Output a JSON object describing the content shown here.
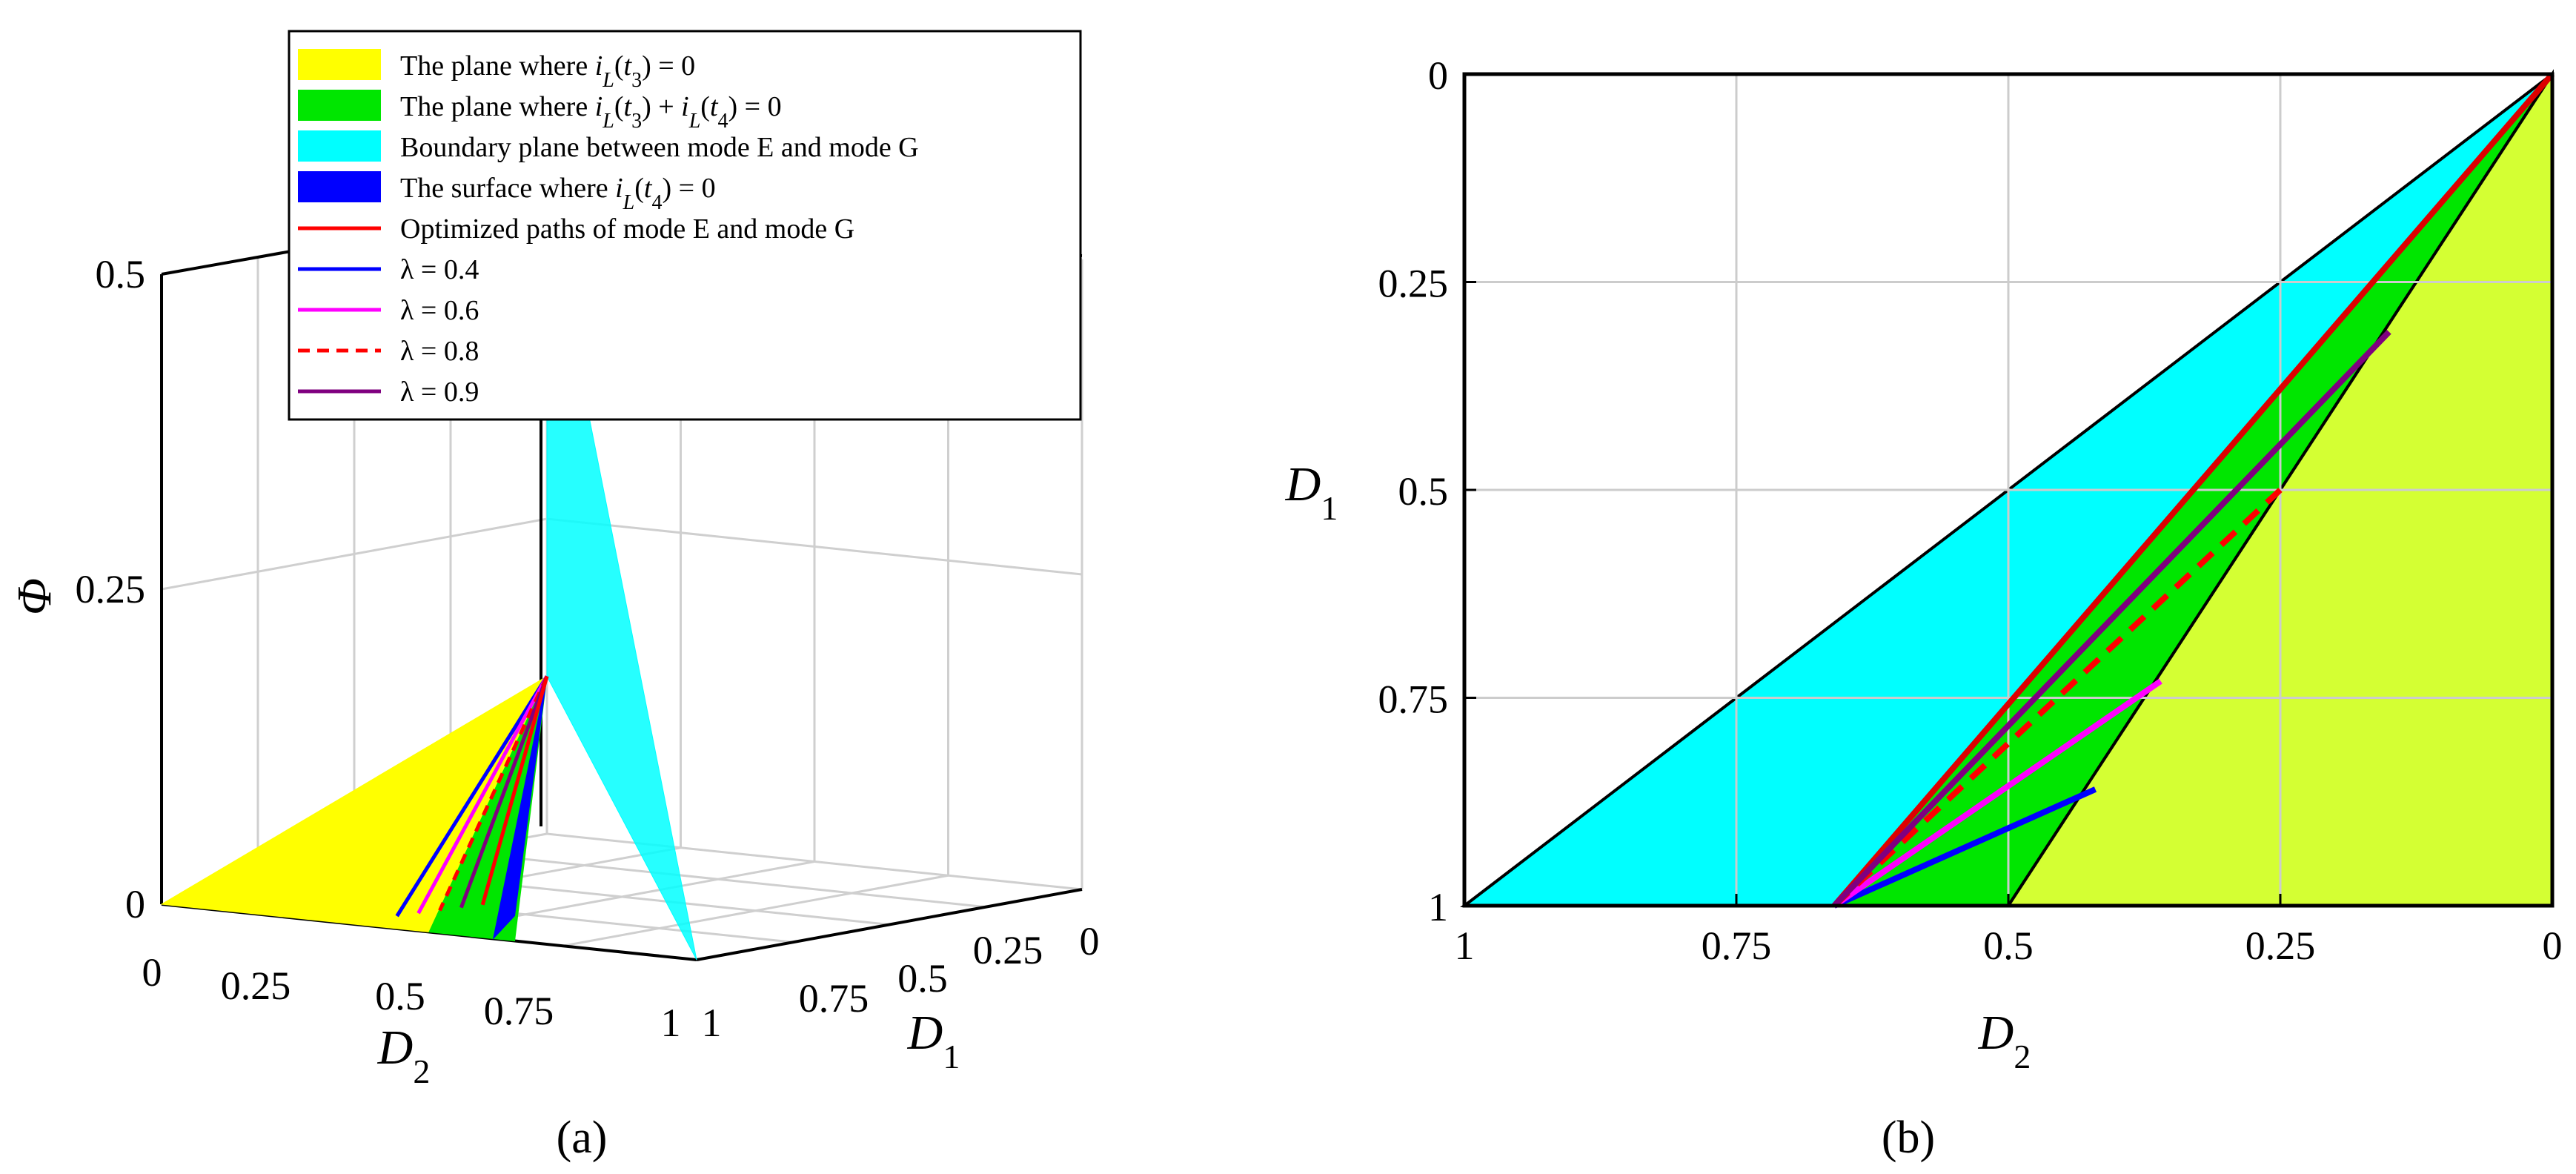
{
  "figure": {
    "panel_labels": [
      "(a)",
      "(b)"
    ]
  },
  "legend": [
    {
      "kind": "patch",
      "color": "#ffff00",
      "pre": "The plane where ",
      "expr": "i_L(t_3) = 0"
    },
    {
      "kind": "patch",
      "color": "#00e600",
      "pre": "The plane where ",
      "expr": "i_L(t_3) + i_L(t_4) = 0"
    },
    {
      "kind": "patch",
      "color": "#00ffff",
      "pre": "Boundary plane between mode E and mode G",
      "expr": ""
    },
    {
      "kind": "patch",
      "color": "#0000ff",
      "pre": "The surface where ",
      "expr": "i_L(t_4) = 0"
    },
    {
      "kind": "line",
      "color": "#ff0000",
      "dash": "solid",
      "pre": "Optimized paths of mode E and mode G",
      "expr": ""
    },
    {
      "kind": "line",
      "color": "#0000ff",
      "dash": "solid",
      "pre": "λ = 0.4",
      "expr": ""
    },
    {
      "kind": "line",
      "color": "#ff00ff",
      "dash": "solid",
      "pre": "λ = 0.6",
      "expr": ""
    },
    {
      "kind": "line",
      "color": "#ff0000",
      "dash": "dashed",
      "pre": "λ = 0.8",
      "expr": ""
    },
    {
      "kind": "line",
      "color": "#7f007f",
      "dash": "solid",
      "pre": "λ = 0.9",
      "expr": ""
    }
  ],
  "chart_data": [
    {
      "type": "surface3d",
      "panel": "(a)",
      "xlabel": "D2",
      "ylabel": "D1",
      "zlabel": "Φ",
      "xlim": [
        0,
        1
      ],
      "ylim": [
        0,
        1
      ],
      "zlim": [
        0,
        0.5
      ],
      "xticks": [
        "0",
        "0.25",
        "0.5",
        "0.75",
        "1"
      ],
      "yticks": [
        "0",
        "0.25",
        "0.5",
        "0.75",
        "1"
      ],
      "zticks": [
        "0",
        "0.25",
        "0.5"
      ],
      "grid": true,
      "surfaces": [
        {
          "name": "The plane where iL(t3) = 0",
          "color": "#ffff00",
          "vertices": [
            [
              0,
              1,
              0
            ],
            [
              0.5,
              1,
              0
            ],
            [
              0,
              0,
              0.125
            ]
          ]
        },
        {
          "name": "The plane where iL(t3) + iL(t4) = 0",
          "color": "#00e600",
          "vertices": [
            [
              0.5,
              1,
              0
            ],
            [
              0.66,
              1,
              0
            ],
            [
              0,
              0,
              0.125
            ]
          ]
        },
        {
          "name": "Boundary plane between mode E and mode G",
          "color": "#00ffff",
          "vertices": [
            [
              0,
              0,
              0.5
            ],
            [
              1,
              1,
              0
            ],
            [
              0,
              0,
              0.125
            ]
          ]
        },
        {
          "name": "The surface where iL(t4) = 0",
          "color": "#0000ff",
          "vertices": [
            [
              0,
              0,
              0.125
            ],
            [
              0.62,
              1,
              0
            ],
            [
              0.66,
              1,
              0.02
            ]
          ]
        }
      ]
    },
    {
      "type": "area",
      "panel": "(b)",
      "xlabel": "D2",
      "ylabel": "D1",
      "xlim": [
        1,
        0
      ],
      "ylim": [
        1,
        0
      ],
      "xticks": [
        1,
        0.75,
        0.5,
        0.25,
        0
      ],
      "yticks": [
        0,
        0.25,
        0.5,
        0.75,
        1
      ],
      "xtick_labels": [
        "1",
        "0.75",
        "0.5",
        "0.25",
        "0"
      ],
      "ytick_labels": [
        "0",
        "0.25",
        "0.5",
        "0.75",
        "1"
      ],
      "grid": true,
      "regions": [
        {
          "name": "cyan",
          "color": "#00ffff",
          "points": [
            [
              0,
              0
            ],
            [
              1,
              1
            ],
            [
              0.66,
              1
            ]
          ]
        },
        {
          "name": "green",
          "color": "#00e600",
          "points": [
            [
              0,
              0
            ],
            [
              0.66,
              1
            ],
            [
              0.5,
              1
            ]
          ]
        },
        {
          "name": "yellow-green",
          "color": "#d4ff33",
          "points": [
            [
              0,
              0
            ],
            [
              0.5,
              1
            ],
            [
              0,
              1
            ]
          ]
        }
      ],
      "series": [
        {
          "name": "Optimized paths of mode E and mode G",
          "color": "#dd0000",
          "dash": "solid",
          "points": [
            [
              0,
              0
            ],
            [
              0.66,
              1
            ]
          ]
        },
        {
          "name": "λ = 0.4",
          "color": "#0000ff",
          "dash": "solid",
          "points": [
            [
              0.66,
              1
            ],
            [
              0.42,
              0.86
            ]
          ]
        },
        {
          "name": "λ = 0.6",
          "color": "#ff00ff",
          "dash": "solid",
          "points": [
            [
              0.66,
              1
            ],
            [
              0.36,
              0.73
            ]
          ]
        },
        {
          "name": "λ = 0.8",
          "color": "#ff0000",
          "dash": "dashed",
          "points": [
            [
              0.66,
              1
            ],
            [
              0.25,
              0.5
            ]
          ]
        },
        {
          "name": "λ = 0.9",
          "color": "#7f007f",
          "dash": "solid",
          "points": [
            [
              0.66,
              1
            ],
            [
              0.15,
              0.31
            ]
          ]
        }
      ]
    }
  ]
}
